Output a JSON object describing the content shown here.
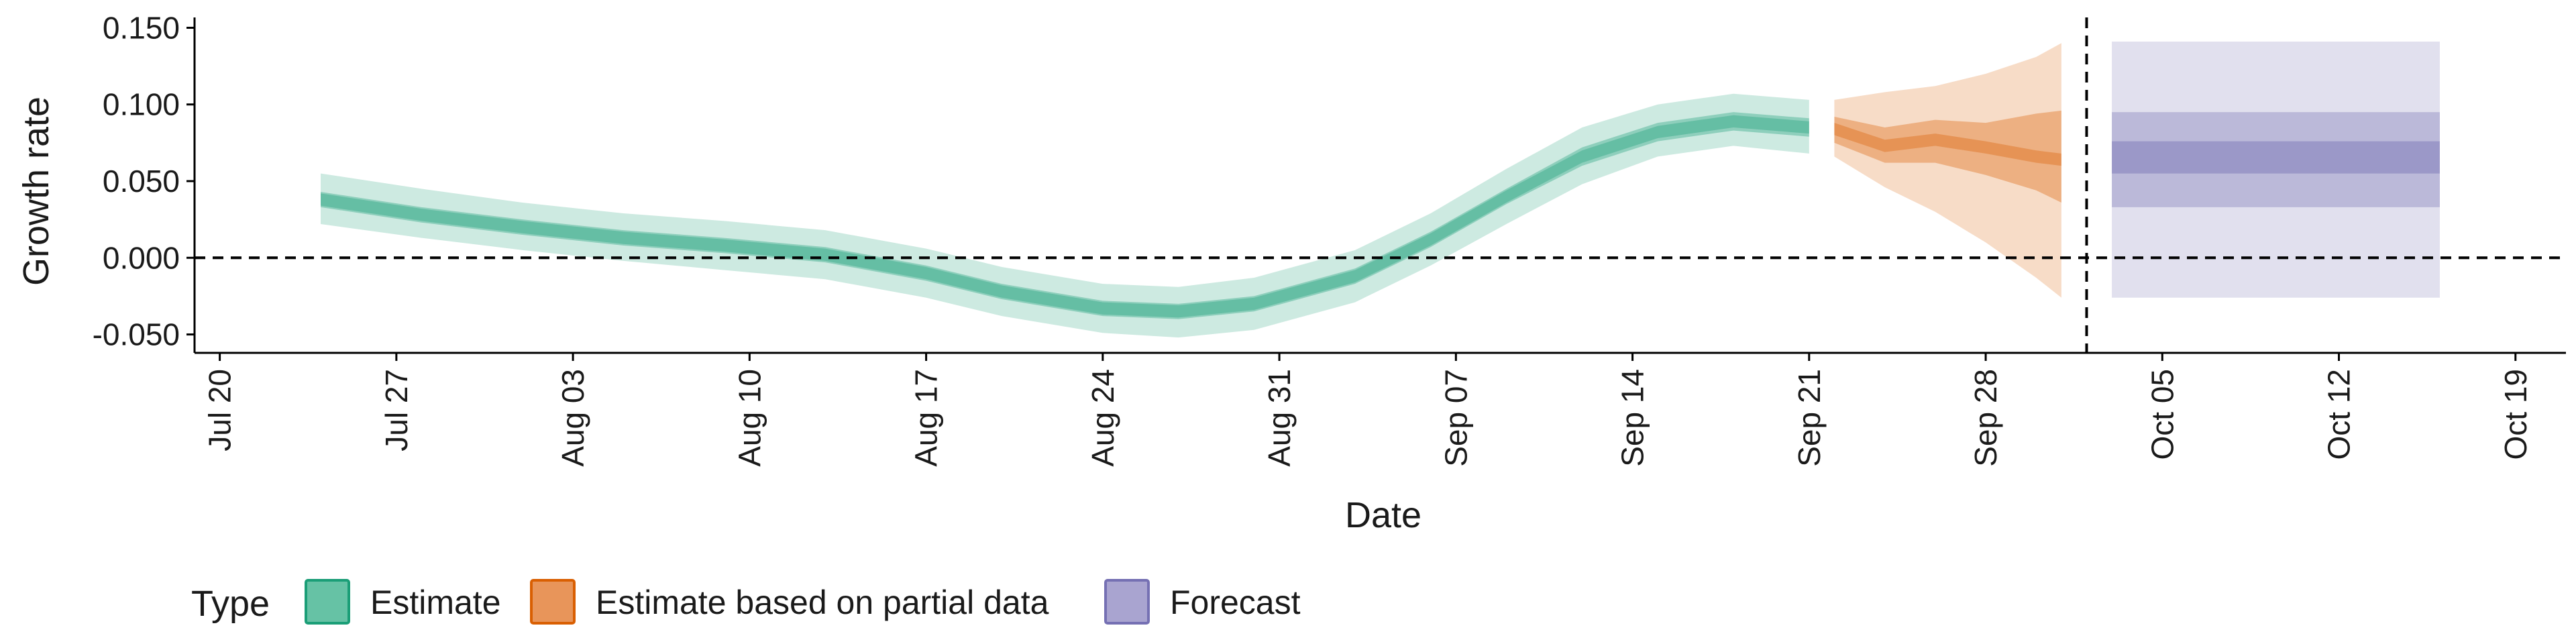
{
  "chart_data": {
    "type": "area",
    "title": "",
    "xlabel": "Date",
    "ylabel": "Growth rate",
    "ylim": [
      -0.062,
      0.155
    ],
    "yticks": [
      -0.05,
      0.0,
      0.05,
      0.1,
      0.15
    ],
    "ytick_labels": [
      "-0.050",
      "0.000",
      "0.050",
      "0.100",
      "0.150"
    ],
    "xlim": [
      "2020-07-19",
      "2020-10-21"
    ],
    "xticks": [
      "2020-07-20",
      "2020-07-27",
      "2020-08-03",
      "2020-08-10",
      "2020-08-17",
      "2020-08-24",
      "2020-08-31",
      "2020-09-07",
      "2020-09-14",
      "2020-09-21",
      "2020-09-28",
      "2020-10-05",
      "2020-10-12",
      "2020-10-19"
    ],
    "xtick_labels": [
      "Jul 20",
      "Jul 27",
      "Aug 03",
      "Aug 10",
      "Aug 17",
      "Aug 24",
      "Aug 31",
      "Sep 07",
      "Sep 14",
      "Sep 21",
      "Sep 28",
      "Oct 05",
      "Oct 12",
      "Oct 19"
    ],
    "hline": 0.0,
    "vline": "2020-10-02",
    "grid": false,
    "legend": {
      "title": "Type",
      "placement": "bottom-left",
      "entries": [
        {
          "label": "Estimate",
          "fill": "#66c2a5",
          "stroke": "#1b9e77"
        },
        {
          "label": "Estimate based on partial data",
          "fill": "#e8955a",
          "stroke": "#d95f02"
        },
        {
          "label": "Forecast",
          "fill": "#a9a4d0",
          "stroke": "#7570b3"
        }
      ]
    },
    "series": [
      {
        "name": "Estimate",
        "color": "#1b9e77",
        "x": [
          "2020-07-24",
          "2020-07-28",
          "2020-08-01",
          "2020-08-05",
          "2020-08-09",
          "2020-08-13",
          "2020-08-17",
          "2020-08-20",
          "2020-08-24",
          "2020-08-27",
          "2020-08-30",
          "2020-09-03",
          "2020-09-06",
          "2020-09-09",
          "2020-09-12",
          "2020-09-15",
          "2020-09-18",
          "2020-09-21"
        ],
        "median": [
          0.038,
          0.028,
          0.02,
          0.013,
          0.008,
          0.002,
          -0.01,
          -0.022,
          -0.033,
          -0.035,
          -0.03,
          -0.012,
          0.012,
          0.04,
          0.066,
          0.082,
          0.089,
          0.085
        ],
        "lower50": [
          0.033,
          0.023,
          0.015,
          0.008,
          0.003,
          -0.003,
          -0.015,
          -0.027,
          -0.038,
          -0.04,
          -0.035,
          -0.017,
          0.007,
          0.035,
          0.06,
          0.076,
          0.083,
          0.079
        ],
        "upper50": [
          0.043,
          0.033,
          0.025,
          0.018,
          0.013,
          0.007,
          -0.005,
          -0.017,
          -0.028,
          -0.03,
          -0.025,
          -0.007,
          0.017,
          0.045,
          0.072,
          0.088,
          0.095,
          0.091
        ],
        "lower90": [
          0.022,
          0.013,
          0.005,
          -0.002,
          -0.008,
          -0.014,
          -0.026,
          -0.038,
          -0.049,
          -0.052,
          -0.047,
          -0.029,
          -0.005,
          0.022,
          0.048,
          0.066,
          0.073,
          0.068
        ],
        "upper90": [
          0.055,
          0.045,
          0.036,
          0.029,
          0.024,
          0.018,
          0.006,
          -0.006,
          -0.017,
          -0.019,
          -0.013,
          0.005,
          0.029,
          0.058,
          0.085,
          0.1,
          0.107,
          0.103
        ]
      },
      {
        "name": "Estimate based on partial data",
        "color": "#d95f02",
        "x": [
          "2020-09-22",
          "2020-09-24",
          "2020-09-26",
          "2020-09-28",
          "2020-09-30",
          "2020-10-01"
        ],
        "median": [
          0.084,
          0.073,
          0.077,
          0.072,
          0.066,
          0.064
        ],
        "lower50": [
          0.075,
          0.062,
          0.062,
          0.054,
          0.044,
          0.036
        ],
        "upper50": [
          0.092,
          0.085,
          0.09,
          0.088,
          0.094,
          0.096
        ],
        "lower90": [
          0.066,
          0.046,
          0.03,
          0.01,
          -0.013,
          -0.026
        ],
        "upper90": [
          0.103,
          0.108,
          0.112,
          0.12,
          0.131,
          0.14
        ]
      },
      {
        "name": "Forecast",
        "color": "#7570b3",
        "x": [
          "2020-10-03",
          "2020-10-16"
        ],
        "median": [
          0.065,
          0.065
        ],
        "lower30": [
          0.055,
          0.055
        ],
        "upper30": [
          0.076,
          0.076
        ],
        "lower60": [
          0.033,
          0.033
        ],
        "upper60": [
          0.095,
          0.095
        ],
        "lower90": [
          -0.026,
          -0.026
        ],
        "upper90": [
          0.141,
          0.141
        ]
      }
    ]
  }
}
